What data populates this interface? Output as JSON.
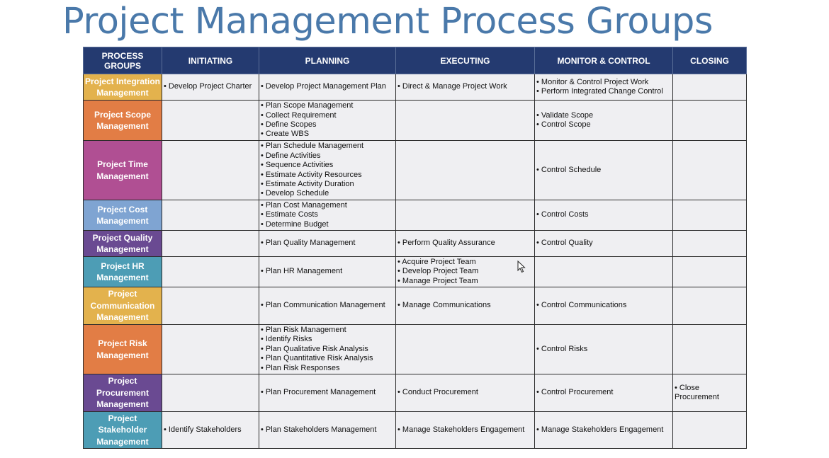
{
  "title": "Project Management Process Groups",
  "header": [
    "PROCESS GROUPS",
    "INITIATING",
    "PLANNING",
    "EXECUTING",
    "MONITOR & CONTROL",
    "CLOSING"
  ],
  "rows": [
    {
      "label": "Project Integration Management",
      "color": "#e3b24d",
      "initiating": [
        "Develop Project Charter"
      ],
      "planning": [
        "Develop Project Management Plan"
      ],
      "executing": [
        "Direct & Manage Project Work"
      ],
      "monitor": [
        "Monitor & Control Project Work",
        "Perform Integrated Change Control"
      ],
      "closing": []
    },
    {
      "label": "Project Scope Management",
      "color": "#e27d45",
      "initiating": [],
      "planning": [
        "Plan Scope Management",
        "Collect Requirement",
        "Define Scopes",
        "Create WBS"
      ],
      "executing": [],
      "monitor": [
        "Validate Scope",
        "Control Scope"
      ],
      "closing": []
    },
    {
      "label": "Project Time Management",
      "color": "#b04f93",
      "initiating": [],
      "planning": [
        "Plan Schedule Management",
        "Define Activities",
        "Sequence Activities",
        "Estimate Activity Resources",
        "Estimate Activity Duration",
        "Develop Schedule"
      ],
      "executing": [],
      "monitor": [
        "Control Schedule"
      ],
      "closing": []
    },
    {
      "label": "Project Cost Management",
      "color": "#7fa4d2",
      "initiating": [],
      "planning": [
        "Plan Cost Management",
        "Estimate Costs",
        "Determine Budget"
      ],
      "executing": [],
      "monitor": [
        "Control Costs"
      ],
      "closing": []
    },
    {
      "label": "Project Quality Management",
      "color": "#6a4a92",
      "initiating": [],
      "planning": [
        "Plan Quality Management"
      ],
      "executing": [
        "Perform Quality Assurance"
      ],
      "monitor": [
        "Control Quality"
      ],
      "closing": []
    },
    {
      "label": "Project HR Management",
      "color": "#4d9db5",
      "initiating": [],
      "planning": [
        "Plan HR Management"
      ],
      "executing": [
        "Acquire Project Team",
        "Develop Project Team",
        "Manage Project Team"
      ],
      "monitor": [],
      "closing": []
    },
    {
      "label": "Project Communication Management",
      "color": "#e3b24d",
      "initiating": [],
      "planning": [
        "Plan Communication Management"
      ],
      "executing": [
        "Manage Communications"
      ],
      "monitor": [
        "Control Communications"
      ],
      "closing": []
    },
    {
      "label": "Project Risk Management",
      "color": "#e27d45",
      "initiating": [],
      "planning": [
        "Plan Risk Management",
        "Identify Risks",
        "Plan Qualitative Risk Analysis",
        "Plan Quantitative Risk Analysis",
        "Plan Risk Responses"
      ],
      "executing": [],
      "monitor": [
        "Control Risks"
      ],
      "closing": []
    },
    {
      "label": "Project Procurement Management",
      "color": "#6a4a92",
      "initiating": [],
      "planning": [
        "Plan Procurement Management"
      ],
      "executing": [
        "Conduct Procurement"
      ],
      "monitor": [
        "Control Procurement"
      ],
      "closing": [
        "Close Procurement"
      ]
    },
    {
      "label": "Project Stakeholder Management",
      "color": "#4d9db5",
      "initiating": [
        "Identify Stakeholders"
      ],
      "planning": [
        "Plan Stakeholders Management"
      ],
      "executing": [
        "Manage Stakeholders Engagement"
      ],
      "monitor": [
        "Manage Stakeholders Engagement"
      ],
      "closing": []
    }
  ]
}
